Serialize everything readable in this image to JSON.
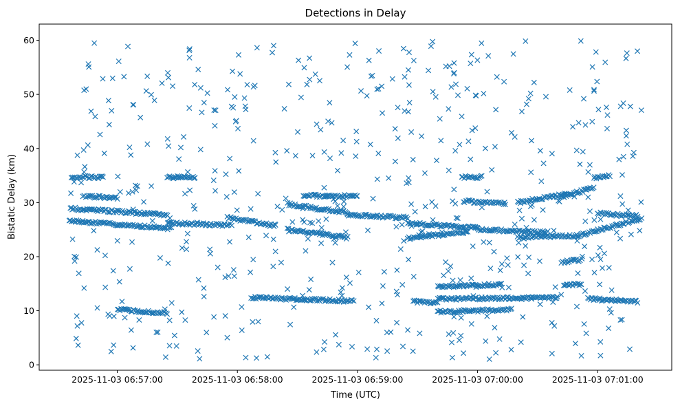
{
  "chart_data": {
    "type": "scatter",
    "title": "Detections in Delay",
    "xlabel": "Time (UTC)",
    "ylabel": "Bistatic Delay (km)",
    "marker": "x",
    "color": "#1f77b4",
    "grid": false,
    "xlim": [
      "2025-11-03 06:56:21",
      "2025-11-03 07:01:37"
    ],
    "ylim": [
      -1.0,
      63.0
    ],
    "x_ticks": [
      "2025-11-03 06:57:00",
      "2025-11-03 06:58:00",
      "2025-11-03 06:59:00",
      "2025-11-03 07:00:00",
      "2025-11-03 07:01:00"
    ],
    "y_ticks": [
      0,
      10,
      20,
      30,
      40,
      50,
      60
    ],
    "time_range": [
      "2025-11-03 06:56:36",
      "2025-11-03 07:01:23"
    ],
    "tracks": [
      {
        "start": [
          "2025-11-03 06:56:36",
          26.6
        ],
        "end": [
          "2025-11-03 06:57:27",
          25.2
        ]
      },
      {
        "start": [
          "2025-11-03 06:56:37",
          28.9
        ],
        "end": [
          "2025-11-03 06:57:25",
          27.7
        ]
      },
      {
        "start": [
          "2025-11-03 06:56:37",
          34.7
        ],
        "end": [
          "2025-11-03 06:56:53",
          34.7
        ]
      },
      {
        "start": [
          "2025-11-03 06:56:43",
          31.2
        ],
        "end": [
          "2025-11-03 06:57:00",
          30.9
        ]
      },
      {
        "start": [
          "2025-11-03 06:57:00",
          10.2
        ],
        "end": [
          "2025-11-03 06:57:25",
          9.6
        ]
      },
      {
        "start": [
          "2025-11-03 06:57:25",
          34.7
        ],
        "end": [
          "2025-11-03 06:57:39",
          34.6
        ]
      },
      {
        "start": [
          "2025-11-03 06:57:25",
          26.2
        ],
        "end": [
          "2025-11-03 06:57:57",
          25.8
        ]
      },
      {
        "start": [
          "2025-11-03 06:57:55",
          27.2
        ],
        "end": [
          "2025-11-03 06:58:19",
          25.7
        ]
      },
      {
        "start": [
          "2025-11-03 06:58:07",
          12.4
        ],
        "end": [
          "2025-11-03 06:58:58",
          11.8
        ]
      },
      {
        "start": [
          "2025-11-03 06:58:25",
          29.7
        ],
        "end": [
          "2025-11-03 06:58:55",
          28.1
        ]
      },
      {
        "start": [
          "2025-11-03 06:58:25",
          25.0
        ],
        "end": [
          "2025-11-03 06:58:55",
          23.5
        ]
      },
      {
        "start": [
          "2025-11-03 06:58:33",
          31.3
        ],
        "end": [
          "2025-11-03 06:59:00",
          31.2
        ]
      },
      {
        "start": [
          "2025-11-03 06:58:55",
          27.7
        ],
        "end": [
          "2025-11-03 06:59:25",
          27.2
        ]
      },
      {
        "start": [
          "2025-11-03 06:59:25",
          26.2
        ],
        "end": [
          "2025-11-03 07:00:00",
          25.3
        ]
      },
      {
        "start": [
          "2025-11-03 06:59:25",
          23.4
        ],
        "end": [
          "2025-11-03 06:59:55",
          24.6
        ]
      },
      {
        "start": [
          "2025-11-03 06:59:28",
          11.7
        ],
        "end": [
          "2025-11-03 06:59:40",
          11.4
        ]
      },
      {
        "start": [
          "2025-11-03 06:59:40",
          12.2
        ],
        "end": [
          "2025-11-03 07:00:40",
          12.4
        ]
      },
      {
        "start": [
          "2025-11-03 06:59:40",
          14.4
        ],
        "end": [
          "2025-11-03 07:00:12",
          14.9
        ]
      },
      {
        "start": [
          "2025-11-03 06:59:40",
          9.8
        ],
        "end": [
          "2025-11-03 07:00:17",
          10.2
        ]
      },
      {
        "start": [
          "2025-11-03 06:59:52",
          34.7
        ],
        "end": [
          "2025-11-03 07:00:02",
          34.7
        ]
      },
      {
        "start": [
          "2025-11-03 06:59:53",
          30.3
        ],
        "end": [
          "2025-11-03 07:00:14",
          29.8
        ]
      },
      {
        "start": [
          "2025-11-03 07:00:00",
          25.0
        ],
        "end": [
          "2025-11-03 07:00:35",
          24.5
        ]
      },
      {
        "start": [
          "2025-11-03 07:00:20",
          30.0
        ],
        "end": [
          "2025-11-03 07:00:45",
          31.6
        ]
      },
      {
        "start": [
          "2025-11-03 07:00:20",
          23.5
        ],
        "end": [
          "2025-11-03 07:00:50",
          23.9
        ]
      },
      {
        "start": [
          "2025-11-03 07:00:42",
          31.1
        ],
        "end": [
          "2025-11-03 07:00:58",
          32.7
        ]
      },
      {
        "start": [
          "2025-11-03 07:00:42",
          19.0
        ],
        "end": [
          "2025-11-03 07:00:52",
          19.4
        ]
      },
      {
        "start": [
          "2025-11-03 07:00:43",
          14.7
        ],
        "end": [
          "2025-11-03 07:00:52",
          14.9
        ]
      },
      {
        "start": [
          "2025-11-03 07:00:50",
          23.9
        ],
        "end": [
          "2025-11-03 07:01:22",
          27.0
        ]
      },
      {
        "start": [
          "2025-11-03 07:00:55",
          12.2
        ],
        "end": [
          "2025-11-03 07:01:20",
          11.7
        ]
      },
      {
        "start": [
          "2025-11-03 07:00:58",
          34.6
        ],
        "end": [
          "2025-11-03 07:01:06",
          35.0
        ]
      },
      {
        "start": [
          "2025-11-03 07:01:00",
          28.0
        ],
        "end": [
          "2025-11-03 07:01:20",
          27.5
        ]
      }
    ]
  }
}
